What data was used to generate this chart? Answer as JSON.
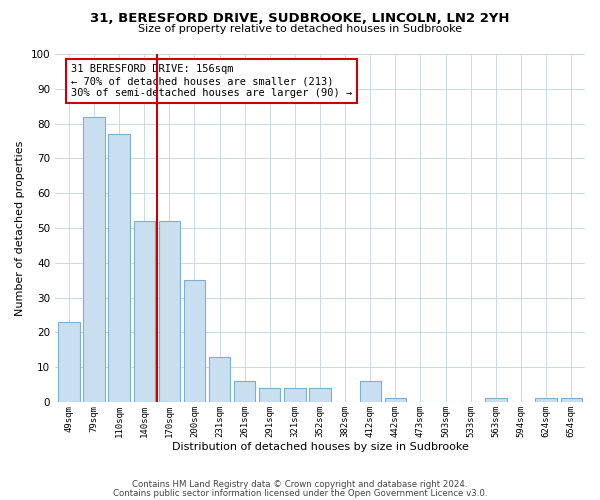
{
  "title1": "31, BERESFORD DRIVE, SUDBROOKE, LINCOLN, LN2 2YH",
  "title2": "Size of property relative to detached houses in Sudbrooke",
  "xlabel": "Distribution of detached houses by size in Sudbrooke",
  "ylabel": "Number of detached properties",
  "footer1": "Contains HM Land Registry data © Crown copyright and database right 2024.",
  "footer2": "Contains public sector information licensed under the Open Government Licence v3.0.",
  "annotation_line1": "31 BERESFORD DRIVE: 156sqm",
  "annotation_line2": "← 70% of detached houses are smaller (213)",
  "annotation_line3": "30% of semi-detached houses are larger (90) →",
  "bar_labels": [
    "49sqm",
    "79sqm",
    "110sqm",
    "140sqm",
    "170sqm",
    "200sqm",
    "231sqm",
    "261sqm",
    "291sqm",
    "321sqm",
    "352sqm",
    "382sqm",
    "412sqm",
    "442sqm",
    "473sqm",
    "503sqm",
    "533sqm",
    "563sqm",
    "594sqm",
    "624sqm",
    "654sqm"
  ],
  "bar_values": [
    23,
    82,
    77,
    52,
    52,
    35,
    13,
    6,
    4,
    4,
    4,
    0,
    6,
    1,
    0,
    0,
    0,
    1,
    0,
    1,
    1
  ],
  "bar_color": "#c9dff0",
  "bar_edge_color": "#7ab0d4",
  "reference_line_color": "#cc0000",
  "ylim": [
    0,
    100
  ],
  "annotation_box_color": "#ffffff",
  "annotation_box_edge": "#cc0000",
  "bg_color": "#ffffff",
  "grid_color": "#c8d8e8"
}
